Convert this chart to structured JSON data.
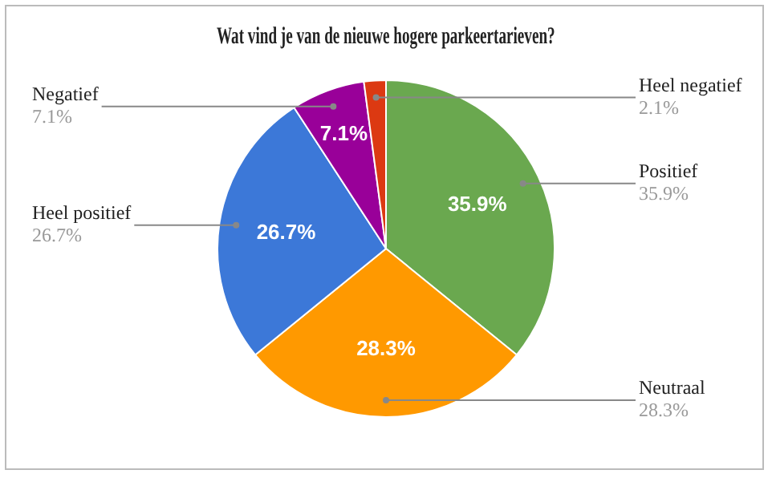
{
  "chart_data": {
    "type": "pie",
    "title": "Wat vind je van de nieuwe hogere parkeertarieven?",
    "categories": [
      "Positief",
      "Neutraal",
      "Heel positief",
      "Negatief",
      "Heel negatief"
    ],
    "values": [
      35.9,
      28.3,
      26.7,
      7.1,
      2.1
    ],
    "colors": [
      "#6aa84f",
      "#ff9900",
      "#3c78d8",
      "#990099",
      "#dc3912"
    ],
    "value_labels": [
      "35.9%",
      "28.3%",
      "26.7%",
      "7.1%",
      "2.1%"
    ],
    "legend": false
  }
}
